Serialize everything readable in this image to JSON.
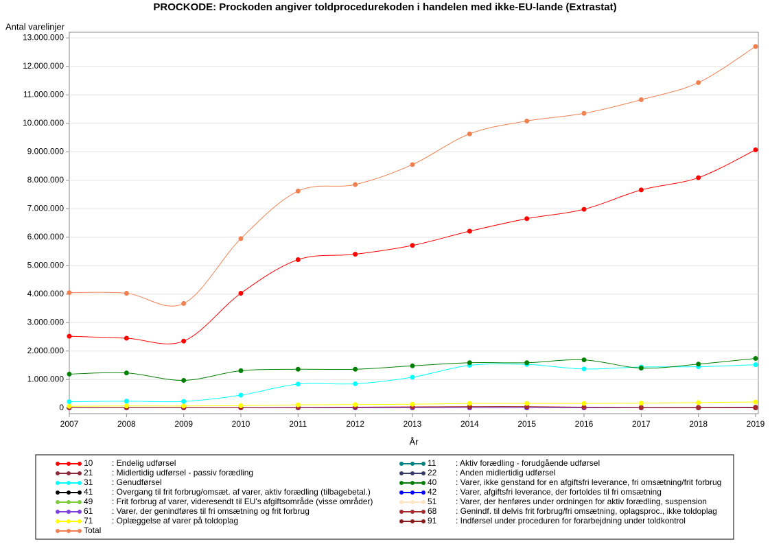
{
  "chart_data": {
    "type": "line",
    "title": "PROCKODE: Prockoden angiver toldprocedurekoden i handelen med ikke-EU-lande (Extrastat)",
    "y_label": "Antal varelinjer",
    "x_label": "År",
    "x": [
      2007,
      2008,
      2009,
      2010,
      2011,
      2012,
      2013,
      2014,
      2015,
      2016,
      2017,
      2018,
      2019
    ],
    "xlim": [
      2007,
      2019
    ],
    "xticks": [
      2007,
      2008,
      2009,
      2010,
      2011,
      2012,
      2013,
      2014,
      2015,
      2016,
      2017,
      2018,
      2019
    ],
    "ylim": [
      -200000,
      13200000
    ],
    "yticks": [
      0,
      {
        "value": 1000000,
        "label": "1.000.000"
      },
      {
        "value": 2000000,
        "label": "2.000.000"
      },
      {
        "value": 3000000,
        "label": "3.000.000"
      },
      {
        "value": 4000000,
        "label": "4.000.000"
      },
      {
        "value": 5000000,
        "label": "5.000.000"
      },
      {
        "value": 6000000,
        "label": "6.000.000"
      },
      {
        "value": 7000000,
        "label": "7.000.000"
      },
      {
        "value": 8000000,
        "label": "8.000.000"
      },
      {
        "value": 9000000,
        "label": "9.000.000"
      },
      {
        "value": 10000000,
        "label": "10.000.000"
      },
      {
        "value": 11000000,
        "label": "11.000.000"
      },
      {
        "value": 12000000,
        "label": "12.000.000"
      },
      {
        "value": 13000000,
        "label": "13.000.000"
      }
    ],
    "grid": true,
    "series": [
      {
        "name": "10",
        "description": ": Endelig udførsel",
        "color": "#ff0000",
        "values": [
          2520000,
          2450000,
          2350000,
          4030000,
          5210000,
          5400000,
          5710000,
          6210000,
          6650000,
          6980000,
          7660000,
          8090000,
          9070000
        ]
      },
      {
        "name": "21",
        "description": ": Midlertidig udførsel - passiv forædling",
        "color": "#8b2a3a",
        "values": [
          10000,
          10000,
          10000,
          10000,
          10000,
          10000,
          10000,
          10000,
          10000,
          10000,
          10000,
          10000,
          10000
        ]
      },
      {
        "name": "31",
        "description": ": Genudførsel",
        "color": "#00ffff",
        "values": [
          220000,
          240000,
          230000,
          450000,
          840000,
          850000,
          1080000,
          1500000,
          1530000,
          1370000,
          1440000,
          1450000,
          1520000
        ]
      },
      {
        "name": "41",
        "description": ": Overgang til frit forbrug/omsæt. af varer, aktiv forædling (tilbagebetal.)",
        "color": "#000000",
        "values": [
          5000,
          5000,
          5000,
          5000,
          5000,
          5000,
          5000,
          5000,
          5000,
          5000,
          5000,
          5000,
          5000
        ]
      },
      {
        "name": "49",
        "description": ": Frit forbrug af varer, videresendt til EU's afgiftsområde (visse områder)",
        "color": "#7fcc3f",
        "values": [
          5000,
          5000,
          5000,
          5000,
          5000,
          5000,
          5000,
          5000,
          5000,
          5000,
          5000,
          5000,
          5000
        ]
      },
      {
        "name": "61",
        "description": ": Varer, der genindføres til fri omsætning og frit forbrug",
        "color": "#7f3fdf",
        "values": [
          5000,
          5000,
          5000,
          5000,
          5000,
          5000,
          5000,
          5000,
          5000,
          5000,
          10000,
          20000,
          30000
        ]
      },
      {
        "name": "71",
        "description": ": Oplæggelse af varer på toldoplag",
        "color": "#ffff00",
        "values": [
          60000,
          70000,
          70000,
          80000,
          110000,
          120000,
          130000,
          160000,
          160000,
          160000,
          170000,
          190000,
          210000
        ]
      },
      {
        "name": "Total",
        "color": "#f08050",
        "values": [
          4050000,
          4030000,
          3670000,
          5950000,
          7620000,
          7850000,
          8550000,
          9630000,
          10080000,
          10350000,
          10830000,
          11430000,
          12700000
        ]
      },
      {
        "name": "11",
        "description": ": Aktiv forædling - forudgående udførsel",
        "color": "#008080",
        "values": [
          5000,
          5000,
          5000,
          5000,
          5000,
          5000,
          5000,
          5000,
          5000,
          5000,
          5000,
          5000,
          5000
        ]
      },
      {
        "name": "22",
        "description": ": Anden midlertidig udførsel",
        "color": "#3a3a6a",
        "values": [
          5000,
          5000,
          5000,
          5000,
          5000,
          5000,
          5000,
          5000,
          5000,
          5000,
          5000,
          5000,
          5000
        ]
      },
      {
        "name": "40",
        "description": ": Varer, ikke genstand for en afgiftsfri leverance, fri omsætning/frit forbrug",
        "color": "#008000",
        "values": [
          1190000,
          1230000,
          970000,
          1310000,
          1360000,
          1360000,
          1480000,
          1590000,
          1590000,
          1690000,
          1400000,
          1540000,
          1740000
        ]
      },
      {
        "name": "42",
        "description": ": Varer, afgiftsfri leverance, der fortoldes til fri omsætning",
        "color": "#0000ff",
        "values": [
          5000,
          5000,
          5000,
          5000,
          5000,
          5000,
          5000,
          5000,
          5000,
          5000,
          5000,
          5000,
          5000
        ]
      },
      {
        "name": "51",
        "description": ": Varer, der henføres under ordningen for aktiv forædling, suspension",
        "color": "#ffe4c4",
        "values": [
          5000,
          5000,
          5000,
          5000,
          5000,
          5000,
          5000,
          5000,
          5000,
          5000,
          5000,
          5000,
          5000
        ]
      },
      {
        "name": "68",
        "description": ": Genindf. til delvis frit forbrug/fri omsætning, oplagsproc., ikke toldoplag",
        "color": "#a52a2a",
        "values": [
          10000,
          10000,
          10000,
          10000,
          20000,
          30000,
          40000,
          50000,
          50000,
          30000,
          20000,
          20000,
          20000
        ]
      },
      {
        "name": "91",
        "description": ": Indførsel under proceduren for forarbejdning under toldkontrol",
        "color": "#8b1a1a",
        "values": [
          5000,
          5000,
          5000,
          5000,
          5000,
          5000,
          5000,
          5000,
          5000,
          5000,
          5000,
          5000,
          5000
        ]
      }
    ]
  }
}
